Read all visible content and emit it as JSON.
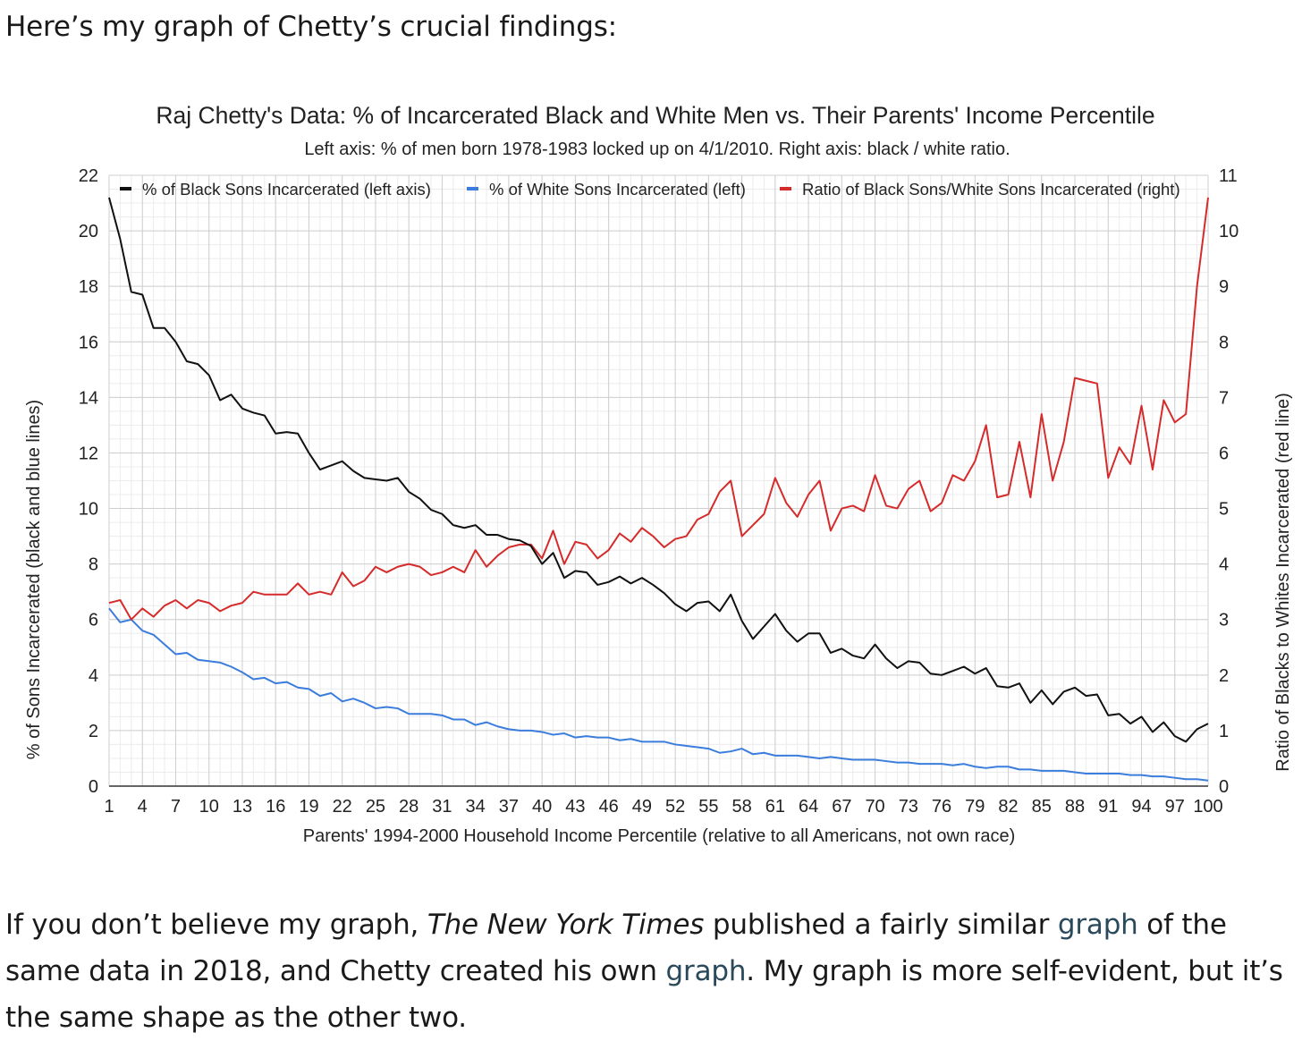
{
  "article": {
    "intro": "Here’s my graph of Chetty’s crucial findings:",
    "outro": {
      "part1": "If you don’t believe my graph, ",
      "nyt": "The New York Times",
      "part2": " published a fairly similar ",
      "link1": "graph",
      "part3": " of the same data in 2018, and Chetty created his own ",
      "link2": "graph",
      "part4": ". My graph is more self-evident, but it’s the same shape as the other two."
    }
  },
  "chart_data": {
    "type": "line",
    "title": "Raj Chetty's Data: % of Incarcerated Black and White Men vs. Their Parents' Income Percentile",
    "subtitle": "Left axis: % of men born 1978-1983 locked up on 4/1/2010. Right axis: black / white ratio.",
    "xlabel": "Parents' 1994-2000 Household Income Percentile (relative to all Americans, not own race)",
    "ylabel_left": "% of Sons Incarcerated (black and blue lines)",
    "ylabel_right": "Ratio of Blacks to Whites Incarcerated (red line)",
    "xlim": [
      1,
      100
    ],
    "ylim_left": [
      0,
      22
    ],
    "ylim_right": [
      0,
      11
    ],
    "x_ticks": [
      1,
      4,
      7,
      10,
      13,
      16,
      19,
      22,
      25,
      28,
      31,
      34,
      37,
      40,
      43,
      46,
      49,
      52,
      55,
      58,
      61,
      64,
      67,
      70,
      73,
      76,
      79,
      82,
      85,
      88,
      91,
      94,
      97,
      100
    ],
    "y_ticks_left": [
      0,
      2,
      4,
      6,
      8,
      10,
      12,
      14,
      16,
      18,
      20,
      22
    ],
    "y_ticks_right": [
      0,
      1,
      2,
      3,
      4,
      5,
      6,
      7,
      8,
      9,
      10,
      11
    ],
    "grid": true,
    "legend_position": "top",
    "series": [
      {
        "name": "% of Black Sons Incarcerated (left axis)",
        "axis": "left",
        "color": "#111111",
        "values": [
          21.2,
          19.7,
          17.8,
          17.7,
          16.5,
          16.5,
          16.0,
          15.3,
          15.2,
          14.8,
          13.9,
          14.1,
          13.6,
          13.45,
          13.35,
          12.7,
          12.75,
          12.7,
          12.0,
          11.4,
          11.55,
          11.7,
          11.35,
          11.1,
          11.05,
          11.0,
          11.1,
          10.6,
          10.35,
          9.95,
          9.8,
          9.4,
          9.3,
          9.4,
          9.05,
          9.05,
          8.9,
          8.85,
          8.65,
          8.0,
          8.4,
          7.5,
          7.75,
          7.7,
          7.25,
          7.35,
          7.55,
          7.3,
          7.5,
          7.25,
          6.95,
          6.55,
          6.3,
          6.6,
          6.65,
          6.3,
          6.9,
          5.95,
          5.3,
          5.75,
          6.2,
          5.6,
          5.2,
          5.5,
          5.5,
          4.8,
          4.95,
          4.7,
          4.6,
          5.1,
          4.6,
          4.25,
          4.5,
          4.45,
          4.05,
          4.0,
          4.15,
          4.3,
          4.05,
          4.25,
          3.6,
          3.55,
          3.7,
          3.0,
          3.45,
          2.95,
          3.4,
          3.55,
          3.25,
          3.3,
          2.55,
          2.6,
          2.25,
          2.5,
          1.95,
          2.3,
          1.8,
          1.6,
          2.05,
          2.25
        ]
      },
      {
        "name": "% of White Sons Incarcerated (left)",
        "axis": "left",
        "color": "#3b7ddd",
        "values": [
          6.4,
          5.9,
          6.0,
          5.6,
          5.45,
          5.1,
          4.75,
          4.8,
          4.55,
          4.5,
          4.45,
          4.3,
          4.1,
          3.85,
          3.9,
          3.7,
          3.75,
          3.55,
          3.5,
          3.25,
          3.35,
          3.05,
          3.15,
          3.0,
          2.8,
          2.85,
          2.8,
          2.6,
          2.6,
          2.6,
          2.55,
          2.4,
          2.4,
          2.2,
          2.3,
          2.15,
          2.05,
          2.0,
          2.0,
          1.95,
          1.85,
          1.9,
          1.75,
          1.8,
          1.75,
          1.75,
          1.65,
          1.7,
          1.6,
          1.6,
          1.6,
          1.5,
          1.45,
          1.4,
          1.35,
          1.2,
          1.25,
          1.35,
          1.15,
          1.2,
          1.1,
          1.1,
          1.1,
          1.05,
          1.0,
          1.05,
          1.0,
          0.95,
          0.95,
          0.95,
          0.9,
          0.85,
          0.85,
          0.8,
          0.8,
          0.8,
          0.75,
          0.8,
          0.7,
          0.65,
          0.7,
          0.7,
          0.6,
          0.6,
          0.55,
          0.55,
          0.55,
          0.5,
          0.45,
          0.45,
          0.45,
          0.45,
          0.4,
          0.4,
          0.35,
          0.35,
          0.3,
          0.25,
          0.25,
          0.2
        ]
      },
      {
        "name": "Ratio of Black Sons/White Sons Incarcerated (right)",
        "axis": "right",
        "color": "#d62b2b",
        "values": [
          3.3,
          3.35,
          3.0,
          3.2,
          3.05,
          3.25,
          3.35,
          3.2,
          3.35,
          3.3,
          3.15,
          3.25,
          3.3,
          3.5,
          3.45,
          3.45,
          3.45,
          3.65,
          3.45,
          3.5,
          3.45,
          3.85,
          3.6,
          3.7,
          3.95,
          3.85,
          3.95,
          4.0,
          3.95,
          3.8,
          3.85,
          3.95,
          3.85,
          4.25,
          3.95,
          4.15,
          4.3,
          4.35,
          4.35,
          4.1,
          4.6,
          4.0,
          4.4,
          4.35,
          4.1,
          4.25,
          4.55,
          4.4,
          4.65,
          4.5,
          4.3,
          4.45,
          4.5,
          4.8,
          4.9,
          5.3,
          5.5,
          4.5,
          4.7,
          4.9,
          5.55,
          5.1,
          4.85,
          5.25,
          5.5,
          4.6,
          5.0,
          5.05,
          4.95,
          5.6,
          5.05,
          5.0,
          5.35,
          5.5,
          4.95,
          5.1,
          5.6,
          5.5,
          5.85,
          6.5,
          5.2,
          5.25,
          6.2,
          5.2,
          6.7,
          5.5,
          6.2,
          7.35,
          7.3,
          7.25,
          5.55,
          6.1,
          5.8,
          6.85,
          5.7,
          6.95,
          6.55,
          6.7,
          9.0,
          10.6
        ]
      }
    ]
  }
}
